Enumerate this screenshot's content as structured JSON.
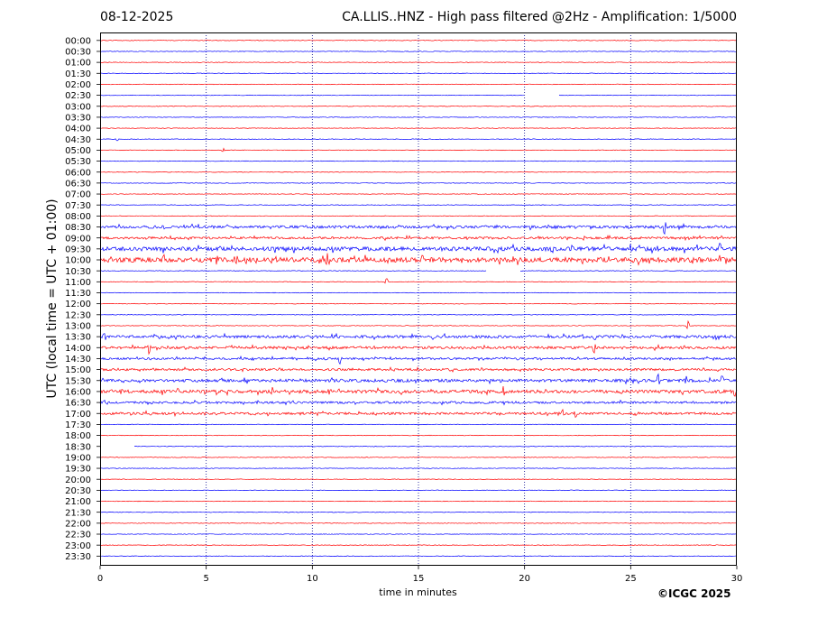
{
  "header": {
    "date": "08-12-2025",
    "title": "CA.LLIS..HNZ - High pass filtered @2Hz - Amplification: 1/5000"
  },
  "copyright": "©ICGC 2025",
  "colors": {
    "red": "#ff0000",
    "blue": "#0000ff",
    "grid": "#00008b"
  },
  "chart_data": {
    "type": "line",
    "xlabel": "time in minutes",
    "ylabel": "UTC (local time = UTC + 01:00)",
    "xlim": [
      0,
      30
    ],
    "x_ticks": [
      "0",
      "5",
      "10",
      "15",
      "20",
      "25",
      "30"
    ],
    "y_ticks": [
      "00:00",
      "00:30",
      "01:00",
      "01:30",
      "02:00",
      "02:30",
      "03:00",
      "03:30",
      "04:00",
      "04:30",
      "05:00",
      "05:30",
      "06:00",
      "06:30",
      "07:00",
      "07:30",
      "08:00",
      "08:30",
      "09:00",
      "09:30",
      "10:00",
      "10:30",
      "11:00",
      "11:30",
      "12:00",
      "12:30",
      "13:00",
      "13:30",
      "14:00",
      "14:30",
      "15:00",
      "15:30",
      "16:00",
      "16:30",
      "17:00",
      "17:30",
      "18:00",
      "18:30",
      "19:00",
      "19:30",
      "20:00",
      "20:30",
      "21:00",
      "21:30",
      "22:00",
      "22:30",
      "23:00",
      "23:30"
    ],
    "grid": "vertical dotted lines every 5 minutes",
    "trace_colors": "alternating red and blue, starting with red at 00:00",
    "gaps": [
      {
        "row": "02:30",
        "start_min": 20.0,
        "end_min": 21.6
      },
      {
        "row": "10:30",
        "start_min": 18.2,
        "end_min": 19.8
      },
      {
        "row": "18:30",
        "start_min": 0.0,
        "end_min": 1.6
      }
    ],
    "events": [
      {
        "row": "04:30",
        "min": 0.8,
        "amp": 2
      },
      {
        "row": "05:00",
        "min": 5.8,
        "amp": 2
      },
      {
        "row": "08:30",
        "min": 26.6,
        "amp": 9
      },
      {
        "row": "09:30",
        "min": 21.3,
        "amp": 4
      },
      {
        "row": "09:30",
        "min": 25.0,
        "amp": 5
      },
      {
        "row": "09:30",
        "min": 26.3,
        "amp": 4
      },
      {
        "row": "09:30",
        "min": 29.2,
        "amp": 5
      },
      {
        "row": "10:00",
        "min": 0.8,
        "amp": 4
      },
      {
        "row": "10:00",
        "min": 3.0,
        "amp": 4
      },
      {
        "row": "10:00",
        "min": 5.5,
        "amp": 5
      },
      {
        "row": "10:00",
        "min": 6.4,
        "amp": 6
      },
      {
        "row": "10:00",
        "min": 10.7,
        "amp": 6
      },
      {
        "row": "10:00",
        "min": 15.2,
        "amp": 4
      },
      {
        "row": "10:00",
        "min": 17.1,
        "amp": 4
      },
      {
        "row": "11:00",
        "min": 13.5,
        "amp": 4
      },
      {
        "row": "13:00",
        "min": 27.7,
        "amp": 5
      },
      {
        "row": "13:30",
        "min": 0.2,
        "amp": 5
      },
      {
        "row": "13:30",
        "min": 15.7,
        "amp": 3
      },
      {
        "row": "13:30",
        "min": 23.3,
        "amp": 5
      },
      {
        "row": "14:00",
        "min": 2.3,
        "amp": 6
      },
      {
        "row": "14:00",
        "min": 23.3,
        "amp": 7
      },
      {
        "row": "14:30",
        "min": 11.3,
        "amp": 4
      },
      {
        "row": "15:30",
        "min": 26.3,
        "amp": 6
      },
      {
        "row": "15:30",
        "min": 27.6,
        "amp": 5
      },
      {
        "row": "15:30",
        "min": 29.3,
        "amp": 5
      },
      {
        "row": "16:00",
        "min": 1.0,
        "amp": 5
      },
      {
        "row": "16:00",
        "min": 8.1,
        "amp": 4
      },
      {
        "row": "16:00",
        "min": 10.8,
        "amp": 4
      },
      {
        "row": "16:00",
        "min": 19.0,
        "amp": 5
      },
      {
        "row": "16:00",
        "min": 29.9,
        "amp": 5
      },
      {
        "row": "17:00",
        "min": 21.8,
        "amp": 5
      },
      {
        "row": "17:00",
        "min": 22.4,
        "amp": 5
      }
    ],
    "noisy_rows": {
      "08:30": 1.5,
      "09:00": 1.2,
      "09:30": 2.2,
      "10:00": 2.6,
      "13:30": 1.5,
      "14:00": 1.4,
      "14:30": 1.1,
      "15:00": 1.2,
      "15:30": 1.6,
      "16:00": 1.8,
      "16:30": 1.2,
      "17:00": 1.3
    }
  }
}
